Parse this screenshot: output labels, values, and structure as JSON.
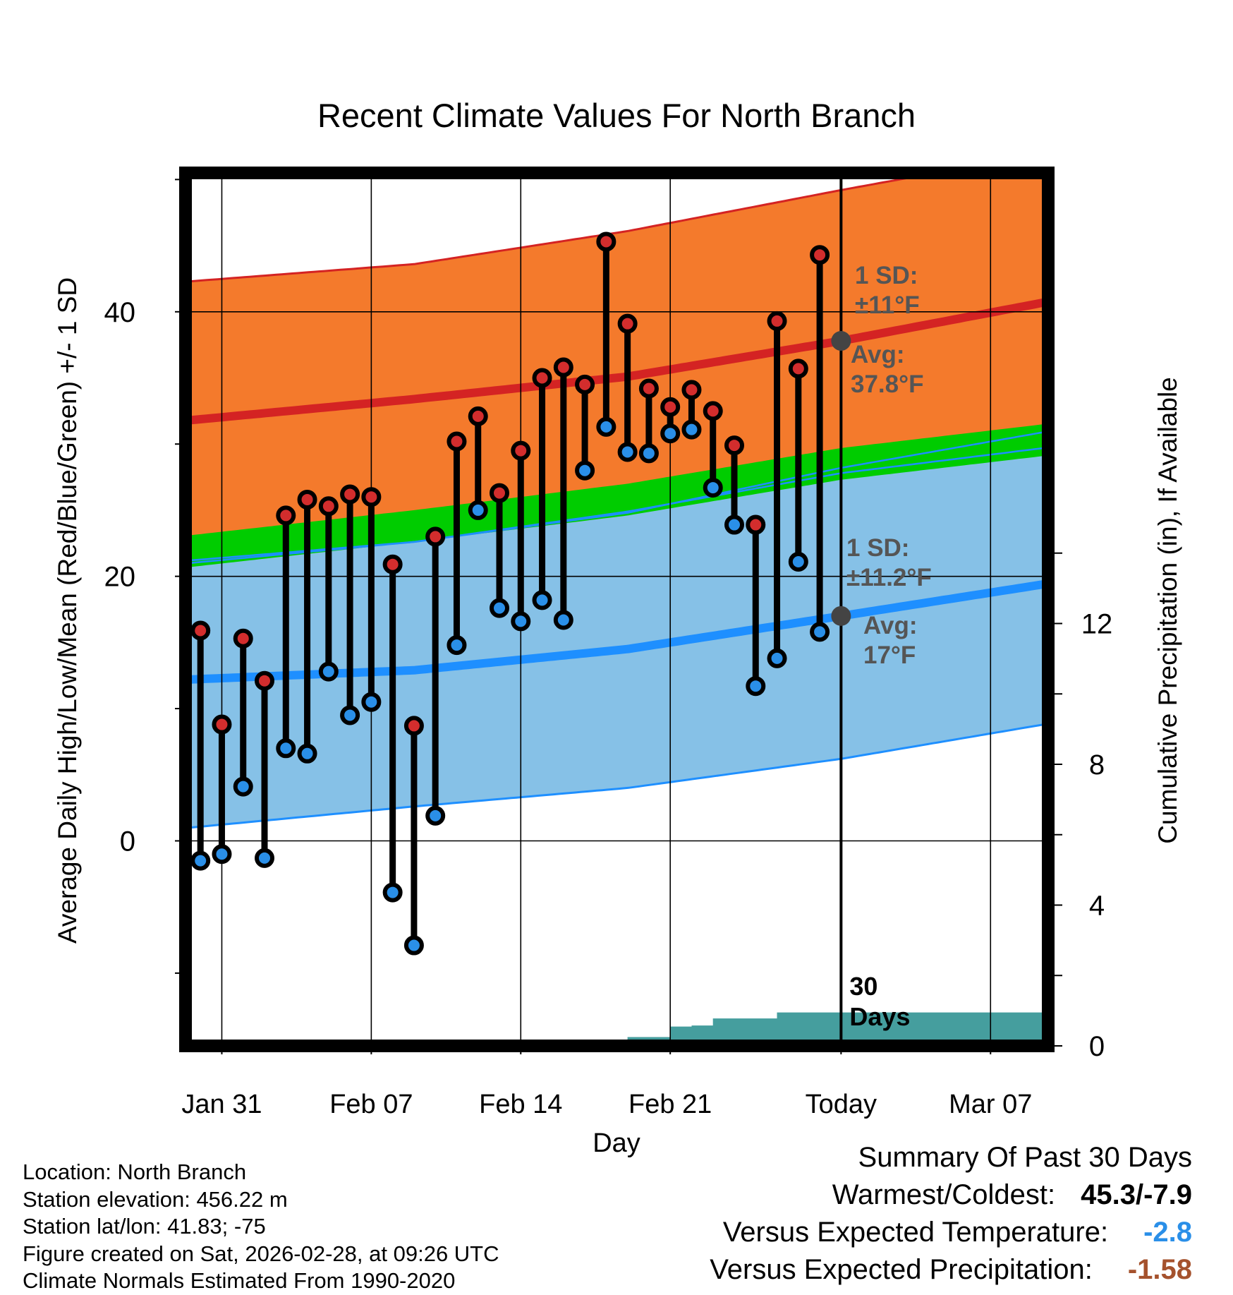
{
  "chart_data": {
    "type": "line",
    "title": "Recent Climate Values For North Branch",
    "xlabel": "Day",
    "ylabel": "Average Daily High/Low/Mean (Red/Blue/Green) +/- 1 SD",
    "y2label": "Cumulative Precipitation (in), If Available",
    "x_ticks": [
      "Jan 31",
      "Feb 07",
      "Feb 14",
      "Feb 21",
      "Today",
      "Mar 07"
    ],
    "y_ticks": [
      "0",
      "20",
      "40"
    ],
    "y2_ticks": [
      "0",
      "4",
      "8",
      "12"
    ],
    "ylim": [
      -15.5,
      50.5
    ],
    "y2lim": [
      0,
      24.8
    ],
    "xlim": [
      -0.7,
      39.7
    ],
    "today_index": 30,
    "today_label": "30 Days",
    "x": [
      0,
      1,
      2,
      3,
      4,
      5,
      6,
      7,
      8,
      9,
      10,
      11,
      12,
      13,
      14,
      15,
      16,
      17,
      18,
      19,
      20,
      21,
      22,
      23,
      24,
      25,
      26,
      27,
      28,
      29
    ],
    "daily_high": [
      15.9,
      8.8,
      15.3,
      12.1,
      24.6,
      25.8,
      25.3,
      26.2,
      26.0,
      20.9,
      8.7,
      23.0,
      30.2,
      32.1,
      26.3,
      29.5,
      35.0,
      35.8,
      34.5,
      45.3,
      39.1,
      34.2,
      32.8,
      34.1,
      32.5,
      29.9,
      23.9,
      39.3,
      35.7,
      44.3
    ],
    "daily_low": [
      -1.5,
      -1.0,
      4.1,
      -1.3,
      7.0,
      6.6,
      12.8,
      9.5,
      10.5,
      -3.9,
      -7.9,
      1.9,
      14.8,
      25.0,
      17.6,
      16.6,
      18.2,
      16.7,
      28.0,
      31.3,
      29.4,
      29.3,
      30.8,
      31.1,
      26.7,
      23.9,
      11.7,
      13.8,
      21.1,
      15.8
    ],
    "normals_x": [
      -0.5,
      10,
      20,
      30,
      39.5
    ],
    "normal_high_mean": [
      31.8,
      33.4,
      35.1,
      37.8,
      40.7
    ],
    "normal_high_upper": [
      42.3,
      43.6,
      46.1,
      49.2,
      52.0
    ],
    "normal_high_lower": [
      21.2,
      22.6,
      24.8,
      28.2,
      30.9
    ],
    "normal_low_mean": [
      12.2,
      12.9,
      14.5,
      17.0,
      19.4
    ],
    "normal_low_upper": [
      21.0,
      22.6,
      24.9,
      27.8,
      29.7
    ],
    "normal_low_lower": [
      1.0,
      2.6,
      4.0,
      6.2,
      8.8
    ],
    "normal_mean": [
      21.9,
      23.8,
      25.8,
      28.5,
      30.3
    ],
    "normal_mean_band_width": 1.2,
    "precip_x": [
      19,
      20,
      21,
      22,
      23,
      24,
      25,
      26,
      27,
      28,
      29,
      30,
      39.7
    ],
    "precip_cumulative": [
      0.02,
      0.25,
      0.25,
      0.55,
      0.58,
      0.78,
      0.78,
      0.78,
      0.95,
      0.95,
      0.95,
      0.95,
      0.95
    ],
    "annotations": {
      "high_sd": [
        "1 SD:",
        "±11°F"
      ],
      "high_avg": [
        "Avg:",
        "37.8°F"
      ],
      "low_sd": [
        "1 SD:",
        "±11.2°F"
      ],
      "low_avg": [
        "Avg:",
        "17°F"
      ]
    },
    "high_avg_marker_value": 37.8,
    "low_avg_marker_value": 17.0,
    "colors": {
      "high_band": "#f47a2c",
      "high_line": "#d42323",
      "low_band": "#86c1e7",
      "low_line": "#1e8fff",
      "mean_band": "#00cc00",
      "overlap": "#961717",
      "precip": "#459e9e",
      "high_dot": "#d32d2d",
      "low_dot": "#2a8fe8",
      "annotation": "#555555"
    }
  },
  "footer": {
    "location": "Location: North Branch",
    "elevation": "Station elevation: 456.22 m",
    "latlon": "Station lat/lon: 41.83; -75",
    "created": "Figure created on Sat, 2026-02-28, at 09:26 UTC",
    "normals": "Climate Normals Estimated From 1990-2020"
  },
  "summary": {
    "heading": "Summary Of Past 30 Days",
    "warm_cold_label": "Warmest/Coldest:",
    "warm_cold_value": "45.3/-7.9",
    "temp_label": "Versus Expected Temperature:",
    "temp_value": "-2.8",
    "temp_color": "#2a8fe8",
    "precip_label": "Versus Expected Precipitation:",
    "precip_value": "-1.58",
    "precip_color": "#a5522d"
  }
}
